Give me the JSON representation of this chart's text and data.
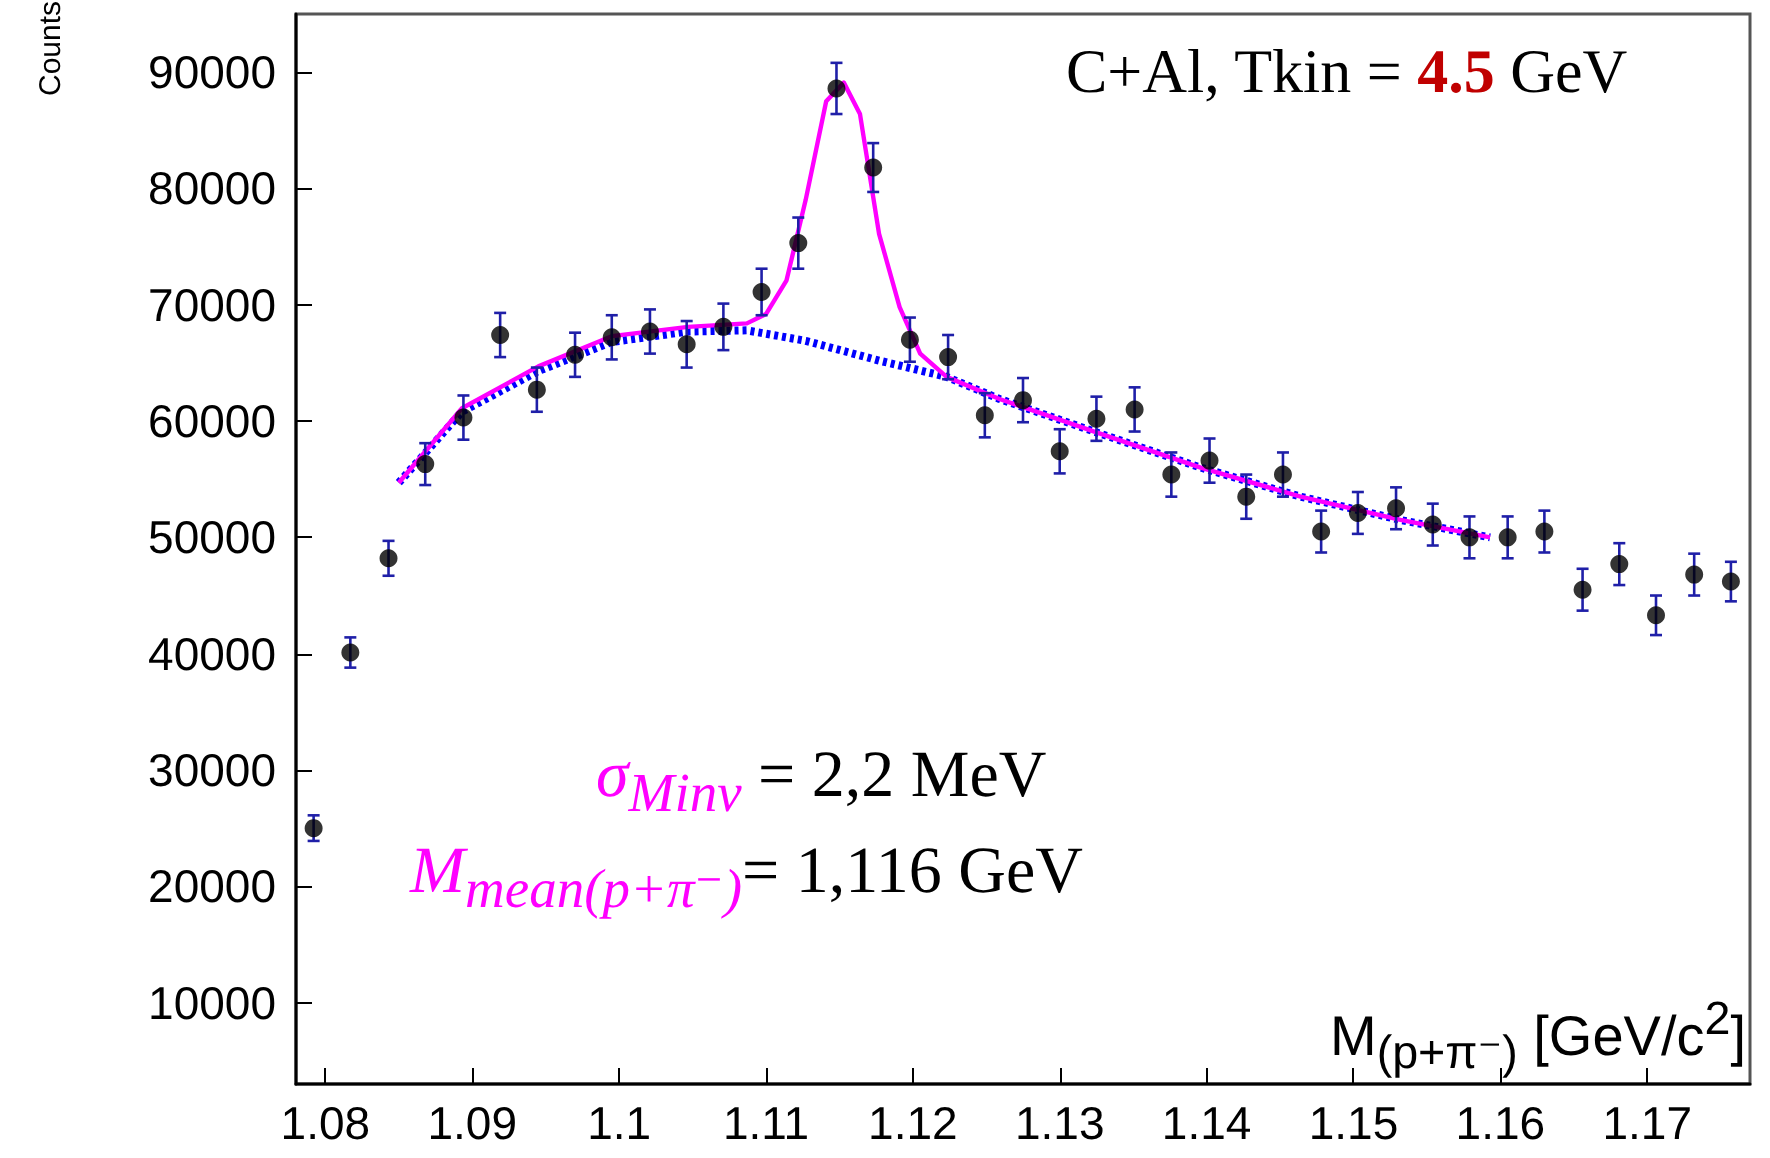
{
  "chart_data": {
    "type": "scatter",
    "xlabel": "M$_{(p+π⁻)}$ [GeV/c$^{2}$]",
    "ylabel": "Counts",
    "annotations": [
      "C+Al, Tkin = 4.5 GeV",
      "σ$_{Minv}$ = 2,2 MeV",
      "M$_{mean(p+π⁻)}$= 1,116 GeV"
    ],
    "xlim": [
      1.078,
      1.177
    ],
    "xticks": [
      1.08,
      1.09,
      1.1,
      1.11,
      1.12,
      1.13,
      1.14,
      1.15,
      1.16,
      1.17
    ],
    "ylim": [
      3000,
      95000
    ],
    "yticks": [
      10000,
      20000,
      30000,
      40000,
      50000,
      60000,
      70000,
      80000,
      90000
    ],
    "grid": false,
    "series": [
      {
        "color": "#000000",
        "marker": "circle",
        "x": [
          1.0792,
          1.0817,
          1.0843,
          1.0868,
          1.0894,
          1.0919,
          1.0944,
          1.097,
          1.0995,
          1.1021,
          1.1046,
          1.1071,
          1.1097,
          1.1122,
          1.1148,
          1.1173,
          1.1198,
          1.1224,
          1.1249,
          1.1275,
          1.13,
          1.1325,
          1.1351,
          1.1376,
          1.1402,
          1.1427,
          1.1452,
          1.1478,
          1.1503,
          1.1529,
          1.1554,
          1.1579,
          1.1605,
          1.163,
          1.1656,
          1.1681,
          1.1706,
          1.1732,
          1.1757
        ],
        "values": [
          25000,
          40100,
          48200,
          56300,
          60300,
          67400,
          62700,
          65700,
          67200,
          67700,
          66600,
          68100,
          71100,
          75300,
          88600,
          81800,
          67000,
          65500,
          60500,
          61800,
          57400,
          60200,
          61000,
          55400,
          56600,
          53500,
          55400,
          50500,
          52100,
          52500,
          51100,
          50000,
          50000,
          50500,
          45500,
          47700,
          43300,
          46800,
          46200
        ],
        "errors": [
          1100,
          1300,
          1500,
          1800,
          1900,
          1900,
          1900,
          1900,
          1900,
          1900,
          2000,
          2000,
          2000,
          2200,
          2200,
          2100,
          1900,
          1900,
          1900,
          1900,
          1900,
          1900,
          1900,
          1900,
          1900,
          1900,
          1900,
          1800,
          1800,
          1800,
          1800,
          1800,
          1800,
          1800,
          1800,
          1800,
          1700,
          1800,
          1700
        ]
      },
      {
        "type": "line",
        "color": "#ff00ff",
        "marker": "none",
        "line_style": "solid",
        "x": [
          1.085,
          1.0893,
          1.0945,
          1.0995,
          1.1047,
          1.1087,
          1.11,
          1.1114,
          1.1127,
          1.1141,
          1.1153,
          1.1164,
          1.1177,
          1.1191,
          1.1205,
          1.1223,
          1.1259,
          1.1328,
          1.1396,
          1.1464,
          1.1532,
          1.1593
        ],
        "values": [
          54700,
          61100,
          64700,
          67300,
          68100,
          68400,
          69200,
          72100,
          79000,
          87500,
          89100,
          86400,
          76100,
          69800,
          65800,
          63800,
          61900,
          58900,
          56000,
          53500,
          51500,
          50000
        ]
      },
      {
        "type": "line",
        "color": "#0000ff",
        "marker": "none",
        "line_style": "dotted",
        "x": [
          1.085,
          1.0893,
          1.0945,
          1.0995,
          1.1047,
          1.1087,
          1.1127,
          1.1177,
          1.1223,
          1.1259,
          1.1328,
          1.1396,
          1.1464,
          1.1532,
          1.1593
        ],
        "values": [
          54700,
          60800,
          64300,
          66800,
          67700,
          67800,
          66900,
          65200,
          63800,
          61900,
          58900,
          56000,
          53500,
          51500,
          50000
        ]
      }
    ]
  }
}
